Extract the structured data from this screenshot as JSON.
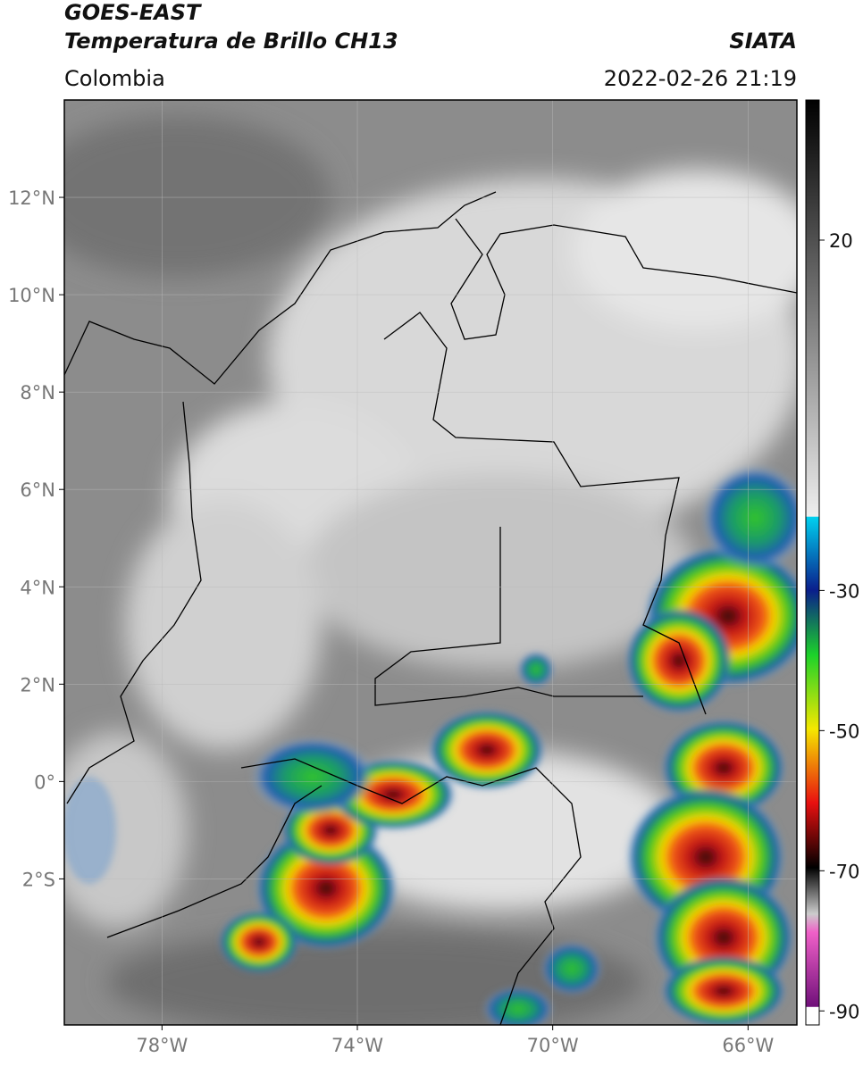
{
  "header": {
    "satellite": "GOES-EAST",
    "product": "Temperatura de Brillo CH13",
    "source": "SIATA",
    "region": "Colombia",
    "datetime": "2022-02-26 21:19"
  },
  "map": {
    "lon_range": [
      -80,
      -65
    ],
    "lat_range": [
      -5,
      14
    ],
    "lat_ticks": [
      {
        "value": 12,
        "label": "12°N"
      },
      {
        "value": 10,
        "label": "10°N"
      },
      {
        "value": 8,
        "label": "8°N"
      },
      {
        "value": 6,
        "label": "6°N"
      },
      {
        "value": 4,
        "label": "4°N"
      },
      {
        "value": 2,
        "label": "2°N"
      },
      {
        "value": 0,
        "label": "0°"
      },
      {
        "value": -2,
        "label": "2°S"
      }
    ],
    "lon_ticks": [
      {
        "value": -78,
        "label": "78°W"
      },
      {
        "value": -74,
        "label": "74°W"
      },
      {
        "value": -70,
        "label": "70°W"
      },
      {
        "value": -66,
        "label": "66°W"
      }
    ]
  },
  "colorbar": {
    "range": [
      -92,
      40
    ],
    "ticks": [
      20,
      -30,
      -50,
      -70,
      -90
    ]
  }
}
